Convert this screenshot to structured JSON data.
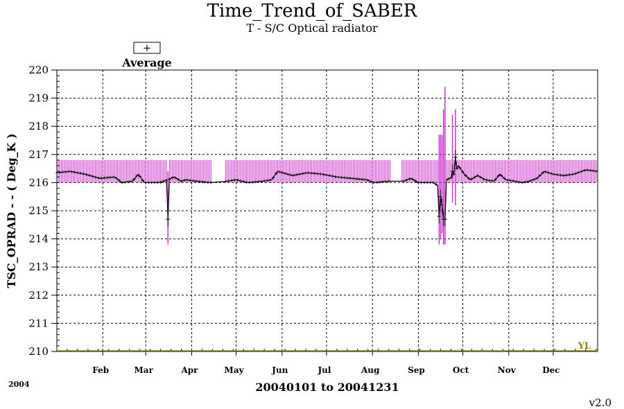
{
  "header": {
    "title": "Time_Trend_of_SABER",
    "subtitle": "T - S/C Optical radiator"
  },
  "legend": {
    "symbol": "+",
    "label": "Average"
  },
  "footer": {
    "year": "2004",
    "range": "20040101 to 20041231",
    "version": "v2.0"
  },
  "colors": {
    "range_bars": "#cc33cc",
    "average": "#000000",
    "limit_line": "#8b8b00",
    "grid": "#000000"
  },
  "chart_data": {
    "type": "line",
    "title": "Time_Trend_of_SABER",
    "subtitle": "T - S/C Optical radiator",
    "ylabel": "TSC_OPRAD - - ( Deg_K )",
    "xlabel": "20040101 to 20041231",
    "xlim": [
      1,
      366
    ],
    "ylim": [
      210,
      220
    ],
    "yticks": [
      210,
      211,
      212,
      213,
      214,
      215,
      216,
      217,
      218,
      219,
      220
    ],
    "xticks": [
      {
        "day": 32,
        "label": "Feb"
      },
      {
        "day": 61,
        "label": "Mar"
      },
      {
        "day": 92,
        "label": "Apr"
      },
      {
        "day": 122,
        "label": "May"
      },
      {
        "day": 153,
        "label": "Jun"
      },
      {
        "day": 183,
        "label": "Jul"
      },
      {
        "day": 214,
        "label": "Aug"
      },
      {
        "day": 245,
        "label": "Sep"
      },
      {
        "day": 275,
        "label": "Oct"
      },
      {
        "day": 306,
        "label": "Nov"
      },
      {
        "day": 336,
        "label": "Dec"
      }
    ],
    "grid": true,
    "limit_line": {
      "label": "YL",
      "value": 210
    },
    "gaps": [
      [
        106,
        114
      ],
      [
        227,
        233
      ]
    ],
    "normal_range": [
      216.0,
      216.8
    ],
    "average_keypoints": [
      [
        1,
        216.35
      ],
      [
        10,
        216.4
      ],
      [
        20,
        216.3
      ],
      [
        30,
        216.15
      ],
      [
        40,
        216.2
      ],
      [
        45,
        216.0
      ],
      [
        52,
        216.05
      ],
      [
        56,
        216.3
      ],
      [
        60,
        216.0
      ],
      [
        70,
        216.0
      ],
      [
        76,
        216.1
      ],
      [
        80,
        216.2
      ],
      [
        85,
        216.05
      ],
      [
        88,
        216.1
      ],
      [
        95,
        216.05
      ],
      [
        105,
        216.0
      ],
      [
        116,
        216.05
      ],
      [
        122,
        216.1
      ],
      [
        130,
        216.0
      ],
      [
        140,
        216.05
      ],
      [
        146,
        216.1
      ],
      [
        150,
        216.4
      ],
      [
        160,
        216.25
      ],
      [
        170,
        216.35
      ],
      [
        180,
        216.3
      ],
      [
        190,
        216.2
      ],
      [
        200,
        216.15
      ],
      [
        210,
        216.1
      ],
      [
        215,
        216.0
      ],
      [
        225,
        216.05
      ],
      [
        235,
        216.05
      ],
      [
        240,
        216.15
      ],
      [
        245,
        216.0
      ],
      [
        250,
        216.0
      ],
      [
        255,
        216.0
      ],
      [
        258,
        215.9
      ],
      [
        264,
        216.1
      ],
      [
        268,
        216.2
      ],
      [
        272,
        216.6
      ],
      [
        276,
        216.3
      ],
      [
        280,
        216.1
      ],
      [
        285,
        216.25
      ],
      [
        290,
        216.1
      ],
      [
        296,
        216.05
      ],
      [
        300,
        216.3
      ],
      [
        304,
        216.1
      ],
      [
        310,
        216.05
      ],
      [
        315,
        216.0
      ],
      [
        320,
        216.05
      ],
      [
        325,
        216.15
      ],
      [
        330,
        216.4
      ],
      [
        336,
        216.3
      ],
      [
        343,
        216.25
      ],
      [
        350,
        216.3
      ],
      [
        358,
        216.45
      ],
      [
        366,
        216.4
      ]
    ],
    "anomalies": [
      {
        "day": 76,
        "min": 213.8,
        "max": 216.4,
        "avg": 214.7
      },
      {
        "day": 259,
        "min": 213.8,
        "max": 217.7,
        "avg": 214.8
      },
      {
        "day": 260,
        "min": 214.0,
        "max": 217.7,
        "avg": 215.5
      },
      {
        "day": 261,
        "min": 214.2,
        "max": 217.7,
        "avg": 215.2
      },
      {
        "day": 262,
        "min": 213.8,
        "max": 218.6,
        "avg": 214.7
      },
      {
        "day": 263,
        "min": 213.8,
        "max": 219.4,
        "avg": 214.7
      },
      {
        "day": 268,
        "min": 215.3,
        "max": 218.4,
        "avg": 216.4
      },
      {
        "day": 270,
        "min": 215.2,
        "max": 218.6,
        "avg": 216.9
      }
    ]
  }
}
